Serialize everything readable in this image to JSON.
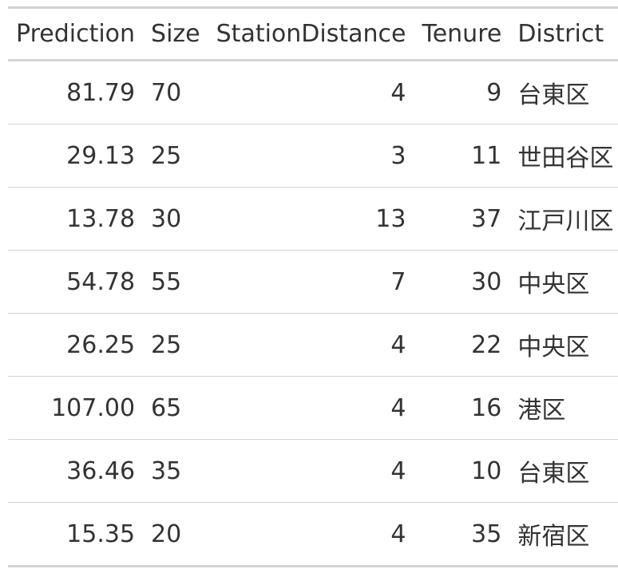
{
  "chart_data": {
    "type": "table",
    "columns": [
      "Prediction",
      "Size",
      "StationDistance",
      "Tenure",
      "District"
    ],
    "rows": [
      [
        "81.79",
        "70",
        "4",
        "9",
        "台東区"
      ],
      [
        "29.13",
        "25",
        "3",
        "11",
        "世田谷区"
      ],
      [
        "13.78",
        "30",
        "13",
        "37",
        "江戸川区"
      ],
      [
        "54.78",
        "55",
        "7",
        "30",
        "中央区"
      ],
      [
        "26.25",
        "25",
        "4",
        "22",
        "中央区"
      ],
      [
        "107.00",
        "65",
        "4",
        "16",
        "港区"
      ],
      [
        "36.46",
        "35",
        "4",
        "10",
        "台東区"
      ],
      [
        "15.35",
        "20",
        "4",
        "35",
        "新宿区"
      ]
    ]
  },
  "colors": {
    "text": "#333333",
    "rule": "#d3d3d3",
    "background": "#ffffff"
  }
}
